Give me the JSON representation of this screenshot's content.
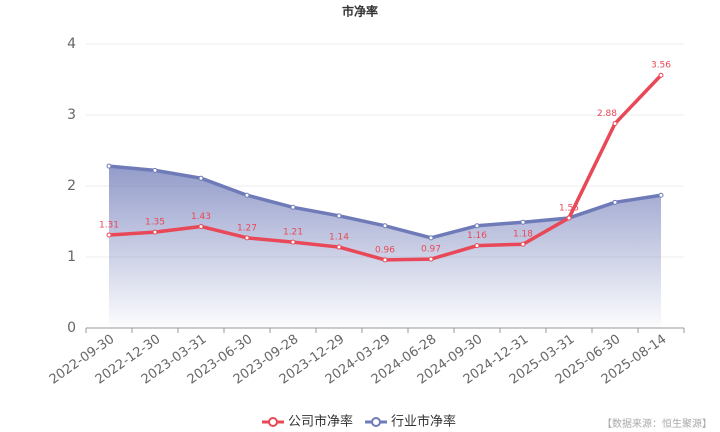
{
  "chart_data": {
    "type": "line",
    "title": "市净率",
    "categories": [
      "2022-09-30",
      "2022-12-30",
      "2023-03-31",
      "2023-06-30",
      "2023-09-28",
      "2023-12-29",
      "2024-03-29",
      "2024-06-28",
      "2024-09-30",
      "2024-12-31",
      "2025-03-31",
      "2025-06-30",
      "2025-08-14"
    ],
    "series": [
      {
        "name": "公司市净率",
        "color": "#e84857",
        "values": [
          1.31,
          1.35,
          1.43,
          1.27,
          1.21,
          1.14,
          0.96,
          0.97,
          1.16,
          1.18,
          1.55,
          2.88,
          3.56
        ]
      },
      {
        "name": "行业市净率",
        "color": "#6f7bb8",
        "values": [
          2.28,
          2.22,
          2.11,
          1.87,
          1.7,
          1.58,
          1.44,
          1.27,
          1.44,
          1.49,
          1.55,
          1.77,
          1.87
        ]
      }
    ],
    "ylim": [
      0,
      4
    ],
    "yticks": [
      0,
      1,
      2,
      3,
      4
    ],
    "grid": true,
    "source": "【数据来源：恒生聚源】"
  }
}
